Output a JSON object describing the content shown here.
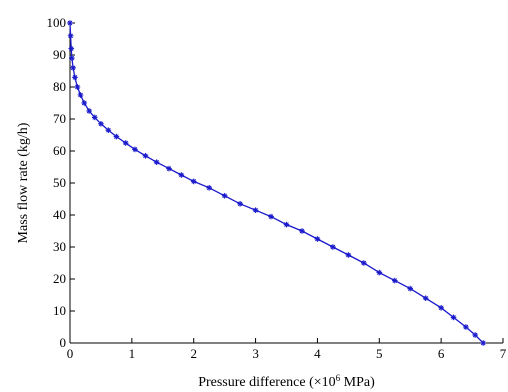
{
  "chart_data": {
    "type": "line",
    "title": "",
    "xlabel": "Pressure difference (×10",
    "xlabel_sup": "6",
    "xlabel_unit": " MPa)",
    "ylabel": "Mass flow rate (kg/h)",
    "xlim": [
      0,
      7
    ],
    "ylim": [
      0,
      100
    ],
    "x_ticks": [
      0,
      1,
      2,
      3,
      4,
      5,
      6,
      7
    ],
    "y_ticks": [
      0,
      10,
      20,
      30,
      40,
      50,
      60,
      70,
      80,
      90,
      100
    ],
    "grid": false,
    "series_color": "#1a1acc",
    "marker": "asterisk",
    "series": [
      {
        "x": [
          0.0,
          0.01,
          0.02,
          0.03,
          0.05,
          0.08,
          0.12,
          0.17,
          0.23,
          0.31,
          0.4,
          0.5,
          0.62,
          0.75,
          0.9,
          1.05,
          1.22,
          1.4,
          1.6,
          1.8,
          2.0,
          2.25,
          2.5,
          2.75,
          3.0,
          3.25,
          3.5,
          3.75,
          4.0,
          4.25,
          4.5,
          4.75,
          5.0,
          5.25,
          5.5,
          5.75,
          6.0,
          6.2,
          6.4,
          6.55,
          6.68
        ],
        "y": [
          100,
          96,
          92,
          89,
          86,
          83,
          80,
          77.5,
          75,
          72.5,
          70.5,
          68.5,
          66.5,
          64.5,
          62.5,
          60.5,
          58.5,
          56.5,
          54.5,
          52.5,
          50.5,
          48.5,
          46,
          43.5,
          41.5,
          39.5,
          37,
          35,
          32.5,
          30,
          27.5,
          25,
          22,
          19.5,
          17,
          14,
          11,
          8,
          5,
          2.5,
          0
        ]
      }
    ]
  }
}
